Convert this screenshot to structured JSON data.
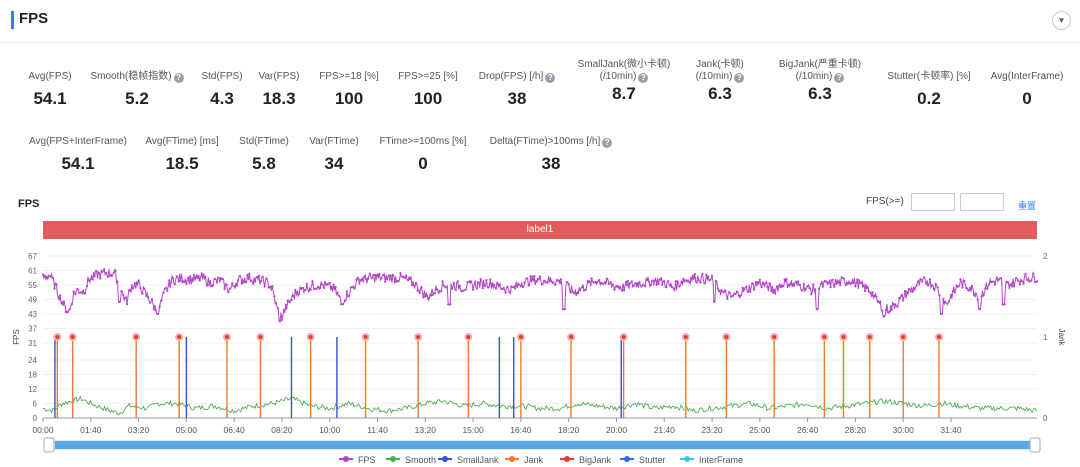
{
  "header": {
    "title": "FPS",
    "collapse_icon": "chevron-down-icon"
  },
  "metrics_row1": [
    {
      "label": "Avg(FPS)",
      "value": "54.1",
      "help": false
    },
    {
      "label": "Smooth(稳帧指数)",
      "value": "5.2",
      "help": true
    },
    {
      "label": "Std(FPS)",
      "value": "4.3",
      "help": false
    },
    {
      "label": "Var(FPS)",
      "value": "18.3",
      "help": false
    },
    {
      "label": "FPS>=18 [%]",
      "value": "100",
      "help": false
    },
    {
      "label": "FPS>=25 [%]",
      "value": "100",
      "help": false
    },
    {
      "label": "Drop(FPS) [/h]",
      "value": "38",
      "help": true
    },
    {
      "label": "SmallJank(微小卡顿)",
      "label2": "(/10min)",
      "value": "8.7",
      "help": true
    },
    {
      "label": "Jank(卡顿)",
      "label2": "(/10min)",
      "value": "6.3",
      "help": true
    },
    {
      "label": "BigJank(严重卡顿)",
      "label2": "(/10min)",
      "value": "6.3",
      "help": true
    },
    {
      "label": "Stutter(卡顿率) [%]",
      "value": "0.2",
      "help": false
    },
    {
      "label": "Avg(InterFrame)",
      "value": "0",
      "help": false
    }
  ],
  "metrics_row2": [
    {
      "label": "Avg(FPS+InterFrame)",
      "value": "54.1",
      "help": false
    },
    {
      "label": "Avg(FTime) [ms]",
      "value": "18.5",
      "help": false
    },
    {
      "label": "Std(FTime)",
      "value": "5.8",
      "help": false
    },
    {
      "label": "Var(FTime)",
      "value": "34",
      "help": false
    },
    {
      "label": "FTime>=100ms [%]",
      "value": "0",
      "help": false
    },
    {
      "label": "Delta(FTime)>100ms [/h]",
      "value": "38",
      "help": true
    }
  ],
  "chart_panel": {
    "title": "FPS",
    "filter_label": "FPS(>=)",
    "filter_value_1": "",
    "filter_value_2": "",
    "reset_label": "重置",
    "label_band": "label1"
  },
  "chart_data": {
    "type": "line",
    "ylabel": "FPS",
    "y2label": "Jank",
    "ylim": [
      0,
      67
    ],
    "y2lim": [
      0,
      2
    ],
    "yticks": [
      0,
      6,
      12,
      18,
      24,
      31,
      37,
      43,
      49,
      55,
      61,
      67
    ],
    "y2ticks": [
      0,
      1,
      2
    ],
    "xlim_seconds": [
      0,
      2080
    ],
    "xticks": [
      "00:00",
      "01:40",
      "03:20",
      "05:00",
      "06:40",
      "08:20",
      "10:00",
      "11:40",
      "13:20",
      "15:00",
      "16:40",
      "18:20",
      "20:00",
      "21:40",
      "23:20",
      "25:00",
      "26:40",
      "28:20",
      "30:00",
      "31:40"
    ],
    "xtick_seconds": [
      0,
      100,
      200,
      300,
      400,
      500,
      600,
      700,
      800,
      900,
      1000,
      1100,
      1200,
      1300,
      1400,
      1500,
      1600,
      1700,
      1800,
      1900
    ],
    "legend": [
      "FPS",
      "Smooth",
      "SmallJank",
      "Jank",
      "BigJank",
      "Stutter",
      "InterFrame"
    ],
    "colors": {
      "FPS": "#b344c9",
      "Smooth": "#4caf50",
      "SmallJank": "#3b4fd8",
      "Jank": "#f07a2e",
      "BigJank": "#e53935",
      "Stutter": "#2f6fe0",
      "InterFrame": "#3fc4e6"
    },
    "fps_profile": [
      [
        0,
        58
      ],
      [
        15,
        59
      ],
      [
        25,
        55
      ],
      [
        35,
        50
      ],
      [
        45,
        46
      ],
      [
        55,
        44
      ],
      [
        65,
        52
      ],
      [
        75,
        53
      ],
      [
        85,
        52
      ],
      [
        95,
        57
      ],
      [
        110,
        59
      ],
      [
        130,
        60
      ],
      [
        150,
        60
      ],
      [
        165,
        52
      ],
      [
        175,
        48
      ],
      [
        185,
        55
      ],
      [
        200,
        55
      ],
      [
        220,
        50
      ],
      [
        240,
        44
      ],
      [
        255,
        52
      ],
      [
        270,
        57
      ],
      [
        290,
        58
      ],
      [
        310,
        57
      ],
      [
        330,
        58
      ],
      [
        350,
        56
      ],
      [
        370,
        57
      ],
      [
        390,
        53
      ],
      [
        410,
        57
      ],
      [
        430,
        58
      ],
      [
        450,
        57
      ],
      [
        470,
        56
      ],
      [
        480,
        53
      ],
      [
        490,
        45
      ],
      [
        500,
        42
      ],
      [
        515,
        48
      ],
      [
        530,
        52
      ],
      [
        550,
        54
      ],
      [
        570,
        55
      ],
      [
        590,
        55
      ],
      [
        610,
        53
      ],
      [
        625,
        48
      ],
      [
        640,
        52
      ],
      [
        660,
        57
      ],
      [
        690,
        58
      ],
      [
        720,
        58
      ],
      [
        750,
        58
      ],
      [
        775,
        56
      ],
      [
        790,
        53
      ],
      [
        805,
        50
      ],
      [
        820,
        53
      ],
      [
        840,
        55
      ],
      [
        860,
        55
      ],
      [
        880,
        54
      ],
      [
        900,
        55
      ],
      [
        930,
        56
      ],
      [
        960,
        54
      ],
      [
        980,
        53
      ],
      [
        1000,
        56
      ],
      [
        1030,
        57
      ],
      [
        1060,
        57
      ],
      [
        1090,
        56
      ],
      [
        1110,
        52
      ],
      [
        1130,
        54
      ],
      [
        1160,
        57
      ],
      [
        1190,
        55
      ],
      [
        1210,
        54
      ],
      [
        1230,
        55
      ],
      [
        1260,
        56
      ],
      [
        1290,
        57
      ],
      [
        1320,
        54
      ],
      [
        1340,
        57
      ],
      [
        1370,
        58
      ],
      [
        1400,
        57
      ],
      [
        1420,
        52
      ],
      [
        1440,
        50
      ],
      [
        1470,
        53
      ],
      [
        1500,
        56
      ],
      [
        1530,
        53
      ],
      [
        1550,
        56
      ],
      [
        1580,
        55
      ],
      [
        1610,
        53
      ],
      [
        1630,
        55
      ],
      [
        1660,
        56
      ],
      [
        1690,
        57
      ],
      [
        1710,
        55
      ],
      [
        1730,
        53
      ],
      [
        1750,
        47
      ],
      [
        1770,
        45
      ],
      [
        1790,
        48
      ],
      [
        1810,
        52
      ],
      [
        1830,
        55
      ],
      [
        1850,
        57
      ],
      [
        1870,
        54
      ],
      [
        1890,
        47
      ],
      [
        1905,
        52
      ],
      [
        1920,
        56
      ],
      [
        1940,
        54
      ],
      [
        1960,
        50
      ],
      [
        1980,
        56
      ],
      [
        2000,
        57
      ],
      [
        2020,
        55
      ],
      [
        2040,
        57
      ],
      [
        2060,
        58
      ],
      [
        2080,
        58
      ]
    ],
    "smooth_profile": [
      [
        0,
        4
      ],
      [
        20,
        3
      ],
      [
        40,
        6
      ],
      [
        60,
        7
      ],
      [
        80,
        8
      ],
      [
        100,
        6
      ],
      [
        140,
        3
      ],
      [
        160,
        2
      ],
      [
        180,
        5
      ],
      [
        220,
        4
      ],
      [
        240,
        6
      ],
      [
        280,
        6
      ],
      [
        320,
        4
      ],
      [
        360,
        5
      ],
      [
        400,
        3
      ],
      [
        440,
        5
      ],
      [
        480,
        6
      ],
      [
        520,
        8
      ],
      [
        560,
        5
      ],
      [
        600,
        4
      ],
      [
        640,
        6
      ],
      [
        680,
        4
      ],
      [
        720,
        3
      ],
      [
        760,
        4
      ],
      [
        800,
        6
      ],
      [
        840,
        7
      ],
      [
        880,
        5
      ],
      [
        920,
        6
      ],
      [
        960,
        5
      ],
      [
        1000,
        5
      ],
      [
        1040,
        4
      ],
      [
        1080,
        4
      ],
      [
        1120,
        6
      ],
      [
        1160,
        5
      ],
      [
        1200,
        4
      ],
      [
        1240,
        6
      ],
      [
        1280,
        4
      ],
      [
        1320,
        5
      ],
      [
        1360,
        3
      ],
      [
        1400,
        4
      ],
      [
        1440,
        5
      ],
      [
        1480,
        6
      ],
      [
        1520,
        4
      ],
      [
        1560,
        5
      ],
      [
        1600,
        6
      ],
      [
        1640,
        4
      ],
      [
        1680,
        5
      ],
      [
        1720,
        6
      ],
      [
        1760,
        7
      ],
      [
        1800,
        6
      ],
      [
        1840,
        5
      ],
      [
        1880,
        6
      ],
      [
        1920,
        5
      ],
      [
        1960,
        4
      ],
      [
        2000,
        4
      ],
      [
        2040,
        4
      ],
      [
        2080,
        3
      ]
    ],
    "jank_events_seconds": [
      30,
      62,
      195,
      285,
      385,
      455,
      560,
      675,
      785,
      890,
      1000,
      1105,
      1215,
      1345,
      1430,
      1530,
      1635,
      1675,
      1730,
      1800,
      1875
    ],
    "smalljank_events_seconds": [
      25,
      300,
      520,
      615,
      955,
      985,
      1210
    ],
    "fps_dips": [
      [
        160,
        48
      ],
      [
        240,
        43
      ],
      [
        495,
        40
      ],
      [
        625,
        47
      ],
      [
        850,
        47
      ],
      [
        1090,
        45
      ],
      [
        1405,
        48
      ],
      [
        1620,
        45
      ],
      [
        1760,
        42
      ],
      [
        1880,
        43
      ],
      [
        1960,
        45
      ],
      [
        2010,
        47
      ]
    ]
  },
  "slider": {
    "start_handle": "slider-start-handle",
    "end_handle": "slider-end-handle"
  }
}
